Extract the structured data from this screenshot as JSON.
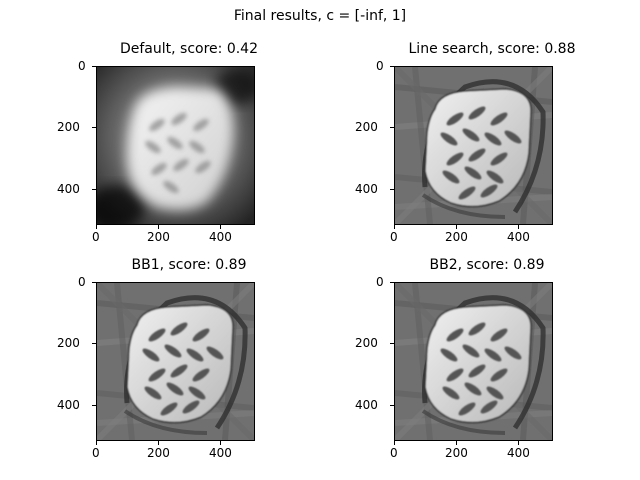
{
  "figure": {
    "suptitle": "Final results, c = [-inf, 1]"
  },
  "panels": [
    {
      "title": "Default, score: 0.42",
      "style": "default",
      "x_ticks": [
        "0",
        "200",
        "400"
      ],
      "y_ticks": [
        "0",
        "200",
        "400"
      ]
    },
    {
      "title": "Line search, score: 0.88",
      "style": "reconstructed",
      "x_ticks": [
        "0",
        "200",
        "400"
      ],
      "y_ticks": [
        "0",
        "200",
        "400"
      ]
    },
    {
      "title": "BB1, score: 0.89",
      "style": "reconstructed",
      "x_ticks": [
        "0",
        "200",
        "400"
      ],
      "y_ticks": [
        "0",
        "200",
        "400"
      ]
    },
    {
      "title": "BB2, score: 0.89",
      "style": "reconstructed",
      "x_ticks": [
        "0",
        "200",
        "400"
      ],
      "y_ticks": [
        "0",
        "200",
        "400"
      ]
    }
  ],
  "image_extent": {
    "x_range": [
      0,
      512
    ],
    "y_range": [
      0,
      512
    ]
  },
  "colormap": "gray"
}
